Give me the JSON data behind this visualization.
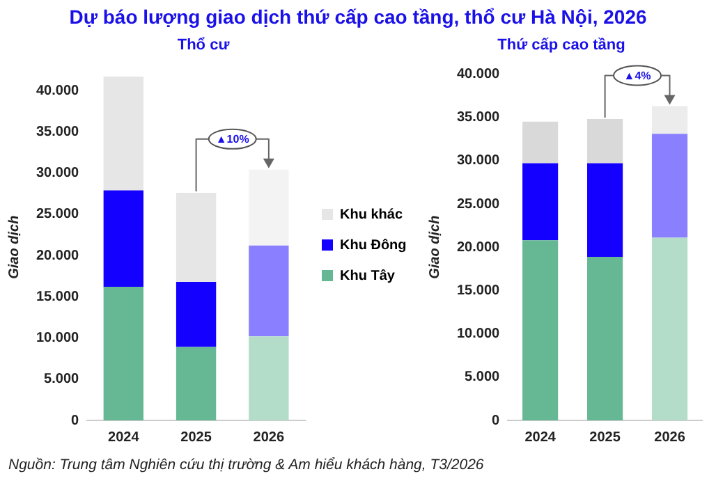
{
  "chart_data": [
    {
      "type": "bar",
      "title": "Dự báo lượng giao dịch thứ cấp cao tầng, thổ cư Hà Nội, 2026",
      "subtitle": "Thổ cư",
      "ylabel": "Giao dịch",
      "stacked": true,
      "legend": "right",
      "grid": false,
      "categories": [
        "2024",
        "2025",
        "2026"
      ],
      "series": [
        {
          "name": "Khu Tây",
          "color": "#66b894",
          "colors": [
            "#66b894",
            "#66b894",
            "#b3dcc9"
          ],
          "values": [
            16200,
            8900,
            10200
          ]
        },
        {
          "name": "Khu Đông",
          "color": "#1400ff",
          "colors": [
            "#1400ff",
            "#1400ff",
            "#8a80ff"
          ],
          "values": [
            11700,
            7900,
            11000
          ]
        },
        {
          "name": "Khu khác",
          "color": "#e6e6e6",
          "colors": [
            "#e6e6e6",
            "#e6e6e6",
            "#f3f3f3"
          ],
          "values": [
            13800,
            10800,
            9200
          ]
        }
      ],
      "ylim": [
        0,
        42000
      ],
      "yticks": [
        {
          "value": 0,
          "label": "0"
        },
        {
          "value": 5000,
          "label": "5.000"
        },
        {
          "value": 10000,
          "label": "10.000"
        },
        {
          "value": 15000,
          "label": "15.000"
        },
        {
          "value": 20000,
          "label": "20.000"
        },
        {
          "value": 25000,
          "label": "25.000"
        },
        {
          "value": 30000,
          "label": "30.000"
        },
        {
          "value": 35000,
          "label": "35.000"
        },
        {
          "value": 40000,
          "label": "40.000"
        }
      ],
      "annotations": [
        {
          "text": "▲10%",
          "x": "2026",
          "y": 30400
        },
        "Nguồn: Trung tâm Nghiên cứu thị trường & Am hiểu khách hàng, T3/2026"
      ]
    },
    {
      "type": "bar",
      "subtitle": "Thứ cấp cao tầng",
      "ylabel": "Giao dịch",
      "stacked": true,
      "legend": false,
      "grid": false,
      "categories": [
        "2024",
        "2025",
        "2026"
      ],
      "series": [
        {
          "color": "#66b894",
          "colors": [
            "#66b894",
            "#66b894",
            "#b3dcc9"
          ],
          "values": [
            20800,
            18900,
            21100
          ]
        },
        {
          "color": "#1400ff",
          "colors": [
            "#1400ff",
            "#1400ff",
            "#8a80ff"
          ],
          "values": [
            8900,
            10800,
            12000
          ]
        },
        {
          "color": "#d9d9d9",
          "colors": [
            "#d9d9d9",
            "#d9d9d9",
            "#ececec"
          ],
          "values": [
            4800,
            5100,
            3200
          ]
        }
      ],
      "ylim": [
        0,
        40000
      ],
      "yticks": [
        {
          "value": 0,
          "label": "0"
        },
        {
          "value": 5000,
          "label": "5.000"
        },
        {
          "value": 10000,
          "label": "10.000"
        },
        {
          "value": 15000,
          "label": "15.000"
        },
        {
          "value": 20000,
          "label": "20.000"
        },
        {
          "value": 25000,
          "label": "25.000"
        },
        {
          "value": 30000,
          "label": "30.000"
        },
        {
          "value": 35000,
          "label": "35.000"
        },
        {
          "value": 40000,
          "label": "40.000"
        }
      ],
      "annotations": [
        {
          "text": "▲4%",
          "x": "2026",
          "y": 36300
        }
      ]
    }
  ]
}
